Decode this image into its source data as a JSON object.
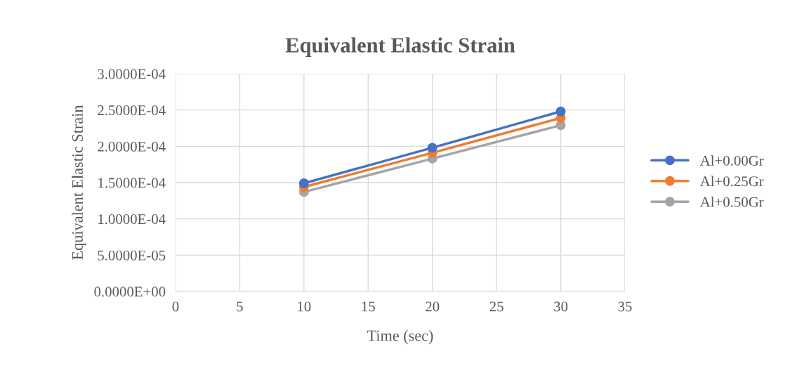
{
  "chart_data": {
    "type": "line",
    "title": "Equivalent Elastic Strain",
    "xlabel": "Time (sec)",
    "ylabel": "Equivalent Elastic Strain",
    "x": [
      10,
      20,
      30
    ],
    "series": [
      {
        "name": "Al+0.00Gr",
        "color": "#4472c4",
        "values": [
          0.000149,
          0.000198,
          0.000248
        ]
      },
      {
        "name": "Al+0.25Gr",
        "color": "#ed7d31",
        "values": [
          0.000144,
          0.000191,
          0.000239
        ]
      },
      {
        "name": "Al+0.50Gr",
        "color": "#a5a5a5",
        "values": [
          0.000137,
          0.000183,
          0.000229
        ]
      }
    ],
    "xlim": [
      0,
      35
    ],
    "xticks": [
      0,
      5,
      10,
      15,
      20,
      25,
      30,
      35
    ],
    "ylim": [
      0,
      0.0003
    ],
    "yticks": [
      {
        "value": 0,
        "label": "0.0000E+00"
      },
      {
        "value": 5e-05,
        "label": "5.0000E-05"
      },
      {
        "value": 0.0001,
        "label": "1.0000E-04"
      },
      {
        "value": 0.00015,
        "label": "1.5000E-04"
      },
      {
        "value": 0.0002,
        "label": "2.0000E-04"
      },
      {
        "value": 0.00025,
        "label": "2.5000E-04"
      },
      {
        "value": 0.0003,
        "label": "3.0000E-04"
      }
    ],
    "grid": true,
    "legend": "right",
    "marker": "circle",
    "line_style": "solid"
  }
}
